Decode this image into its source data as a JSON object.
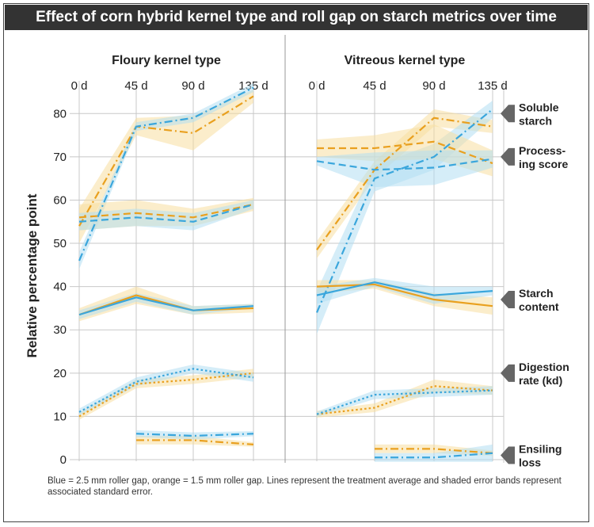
{
  "title": "Effect of corn hybrid kernel type and roll gap on starch metrics over time",
  "caption": "Blue = 2.5 mm roller gap, orange = 1.5 mm roller gap. Lines represent the treatment average and shaded error bands represent associated standard error.",
  "colors": {
    "blue": "#3aa6dc",
    "orange": "#e9a01f",
    "blue_band": "#b3def3",
    "orange_band": "#f8dfa0",
    "grid": "#c8c8c8",
    "divider": "#999999"
  },
  "chart_data": {
    "type": "line",
    "ylabel": "Relative percentage point",
    "ylim": [
      0,
      85
    ],
    "yticks": [
      0,
      10,
      20,
      30,
      40,
      50,
      60,
      70,
      80
    ],
    "x": [
      "0 d",
      "45 d",
      "90 d",
      "135 d"
    ],
    "series_legend": {
      "blue": "2.5 mm roller gap",
      "orange": "1.5 mm roller gap"
    },
    "metric_labels": [
      {
        "text": [
          "Soluble",
          "starch"
        ],
        "y": 80
      },
      {
        "text": [
          "Process-",
          "ing score"
        ],
        "y": 70
      },
      {
        "text": [
          "Starch",
          "content"
        ],
        "y": 37
      },
      {
        "text": [
          "Digestion",
          "rate (kd)"
        ],
        "y": 20
      },
      {
        "text": [
          "Ensiling",
          "loss"
        ],
        "y": 1
      }
    ],
    "panels": [
      {
        "title": "Floury kernel type",
        "series": [
          {
            "metric": "Soluble starch",
            "gap": "orange",
            "dash": "dashdot",
            "x": [
              0,
              1,
              2,
              3
            ],
            "values": [
              54,
              77,
              75.5,
              84
            ],
            "err": [
              4,
              2,
              4,
              1.5
            ]
          },
          {
            "metric": "Soluble starch",
            "gap": "blue",
            "dash": "dashdot",
            "x": [
              0,
              1,
              2,
              3
            ],
            "values": [
              46,
              77,
              79,
              86
            ],
            "err": [
              2,
              1,
              1,
              1
            ]
          },
          {
            "metric": "Processing score",
            "gap": "orange",
            "dash": "dashed",
            "x": [
              0,
              1,
              2,
              3
            ],
            "values": [
              56,
              57,
              56,
              59
            ],
            "err": [
              3,
              3,
              2,
              1.5
            ]
          },
          {
            "metric": "Processing score",
            "gap": "blue",
            "dash": "dashed",
            "x": [
              0,
              1,
              2,
              3
            ],
            "values": [
              55,
              56,
              55,
              59
            ],
            "err": [
              2,
              2,
              2,
              1
            ]
          },
          {
            "metric": "Starch content",
            "gap": "orange",
            "dash": "solid",
            "x": [
              0,
              1,
              2,
              3
            ],
            "values": [
              33.5,
              38,
              34.5,
              35
            ],
            "err": [
              1.5,
              2,
              1,
              1
            ]
          },
          {
            "metric": "Starch content",
            "gap": "blue",
            "dash": "solid",
            "x": [
              0,
              1,
              2,
              3
            ],
            "values": [
              33.5,
              37.5,
              34.5,
              35.5
            ],
            "err": [
              1,
              1,
              1,
              0.5
            ]
          },
          {
            "metric": "Digestion rate (kd)",
            "gap": "orange",
            "dash": "dotted",
            "x": [
              0,
              1,
              2,
              3
            ],
            "values": [
              10,
              17.5,
              18.5,
              20
            ],
            "err": [
              0.8,
              1,
              1,
              1
            ]
          },
          {
            "metric": "Digestion rate (kd)",
            "gap": "blue",
            "dash": "dotted",
            "x": [
              0,
              1,
              2,
              3
            ],
            "values": [
              11,
              18,
              21,
              19
            ],
            "err": [
              0.8,
              1,
              1,
              1
            ]
          },
          {
            "metric": "Ensiling loss",
            "gap": "orange",
            "dash": "dashdot",
            "x": [
              1,
              2,
              3
            ],
            "values": [
              4.5,
              4.5,
              3.5
            ],
            "err": [
              1,
              1,
              0.5
            ]
          },
          {
            "metric": "Ensiling loss",
            "gap": "blue",
            "dash": "dashdot",
            "x": [
              1,
              2,
              3
            ],
            "values": [
              6,
              5.5,
              6
            ],
            "err": [
              0.8,
              0.8,
              0.6
            ]
          }
        ]
      },
      {
        "title": "Vitreous kernel type",
        "series": [
          {
            "metric": "Soluble starch",
            "gap": "orange",
            "dash": "dashdot",
            "x": [
              0,
              1,
              2,
              3
            ],
            "values": [
              48.5,
              67,
              79,
              77
            ],
            "err": [
              2,
              2,
              2,
              1.5
            ]
          },
          {
            "metric": "Soluble starch",
            "gap": "blue",
            "dash": "dashdot",
            "x": [
              0,
              1,
              2,
              3
            ],
            "values": [
              34,
              65,
              70,
              81
            ],
            "err": [
              5,
              3,
              3,
              2
            ]
          },
          {
            "metric": "Processing score",
            "gap": "orange",
            "dash": "dashed",
            "x": [
              0,
              1,
              2,
              3
            ],
            "values": [
              72,
              72,
              73.5,
              68.5
            ],
            "err": [
              2,
              3,
              4,
              3
            ]
          },
          {
            "metric": "Processing score",
            "gap": "blue",
            "dash": "dashed",
            "x": [
              0,
              1,
              2,
              3
            ],
            "values": [
              69,
              67,
              67.5,
              69.5
            ],
            "err": [
              1,
              4,
              4,
              2
            ]
          },
          {
            "metric": "Starch content",
            "gap": "orange",
            "dash": "solid",
            "x": [
              0,
              1,
              2,
              3
            ],
            "values": [
              40,
              40.5,
              37,
              35.5
            ],
            "err": [
              1.5,
              1,
              1.5,
              2
            ]
          },
          {
            "metric": "Starch content",
            "gap": "blue",
            "dash": "solid",
            "x": [
              0,
              1,
              2,
              3
            ],
            "values": [
              38,
              41,
              38,
              39
            ],
            "err": [
              2,
              1,
              2,
              1
            ]
          },
          {
            "metric": "Digestion rate (kd)",
            "gap": "orange",
            "dash": "dotted",
            "x": [
              0,
              1,
              2,
              3
            ],
            "values": [
              10.5,
              12,
              17,
              16
            ],
            "err": [
              0.8,
              1,
              1.5,
              1
            ]
          },
          {
            "metric": "Digestion rate (kd)",
            "gap": "blue",
            "dash": "dotted",
            "x": [
              0,
              1,
              2,
              3
            ],
            "values": [
              10.5,
              15,
              15.5,
              16
            ],
            "err": [
              0.6,
              1,
              1,
              1
            ]
          },
          {
            "metric": "Ensiling loss",
            "gap": "orange",
            "dash": "dashdot",
            "x": [
              1,
              2,
              3
            ],
            "values": [
              2.5,
              2.5,
              1.5
            ],
            "err": [
              1,
              1,
              0.6
            ]
          },
          {
            "metric": "Ensiling loss",
            "gap": "blue",
            "dash": "dashdot",
            "x": [
              1,
              2,
              3
            ],
            "values": [
              0.5,
              0.5,
              1.5
            ],
            "err": [
              1,
              1,
              2
            ]
          }
        ]
      }
    ]
  }
}
